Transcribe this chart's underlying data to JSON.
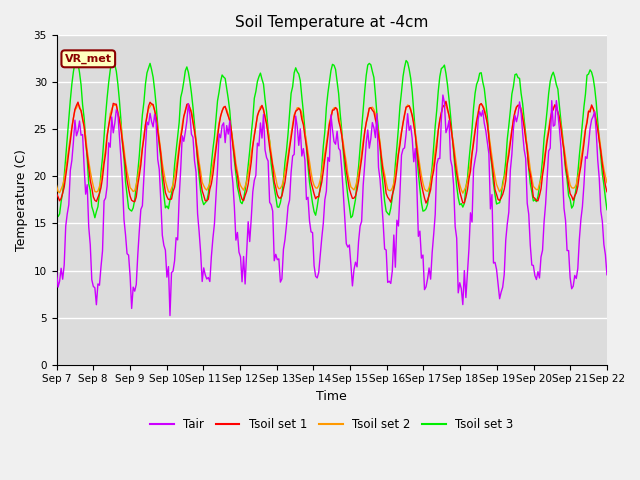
{
  "title": "Soil Temperature at -4cm",
  "xlabel": "Time",
  "ylabel": "Temperature (C)",
  "ylim": [
    0,
    35
  ],
  "yticks": [
    0,
    5,
    10,
    15,
    20,
    25,
    30,
    35
  ],
  "x_tick_labels": [
    "Sep 7",
    "Sep 8",
    "Sep 9",
    "Sep 10",
    "Sep 11",
    "Sep 12",
    "Sep 13",
    "Sep 14",
    "Sep 15",
    "Sep 16",
    "Sep 17",
    "Sep 18",
    "Sep 19",
    "Sep 20",
    "Sep 21",
    "Sep 22"
  ],
  "annotation_text": "VR_met",
  "annotation_color": "#8B0000",
  "annotation_bg": "#FFFFC0",
  "colors": {
    "Tair": "#CC00FF",
    "Tsoil set 1": "#FF0000",
    "Tsoil set 2": "#FF9900",
    "Tsoil set 3": "#00EE00"
  },
  "background_color": "#DCDCDC",
  "plot_bg_color": "#F0F0F0",
  "grid_color": "#FFFFFF",
  "title_fontsize": 11,
  "figsize": [
    6.4,
    4.8
  ],
  "dpi": 100
}
